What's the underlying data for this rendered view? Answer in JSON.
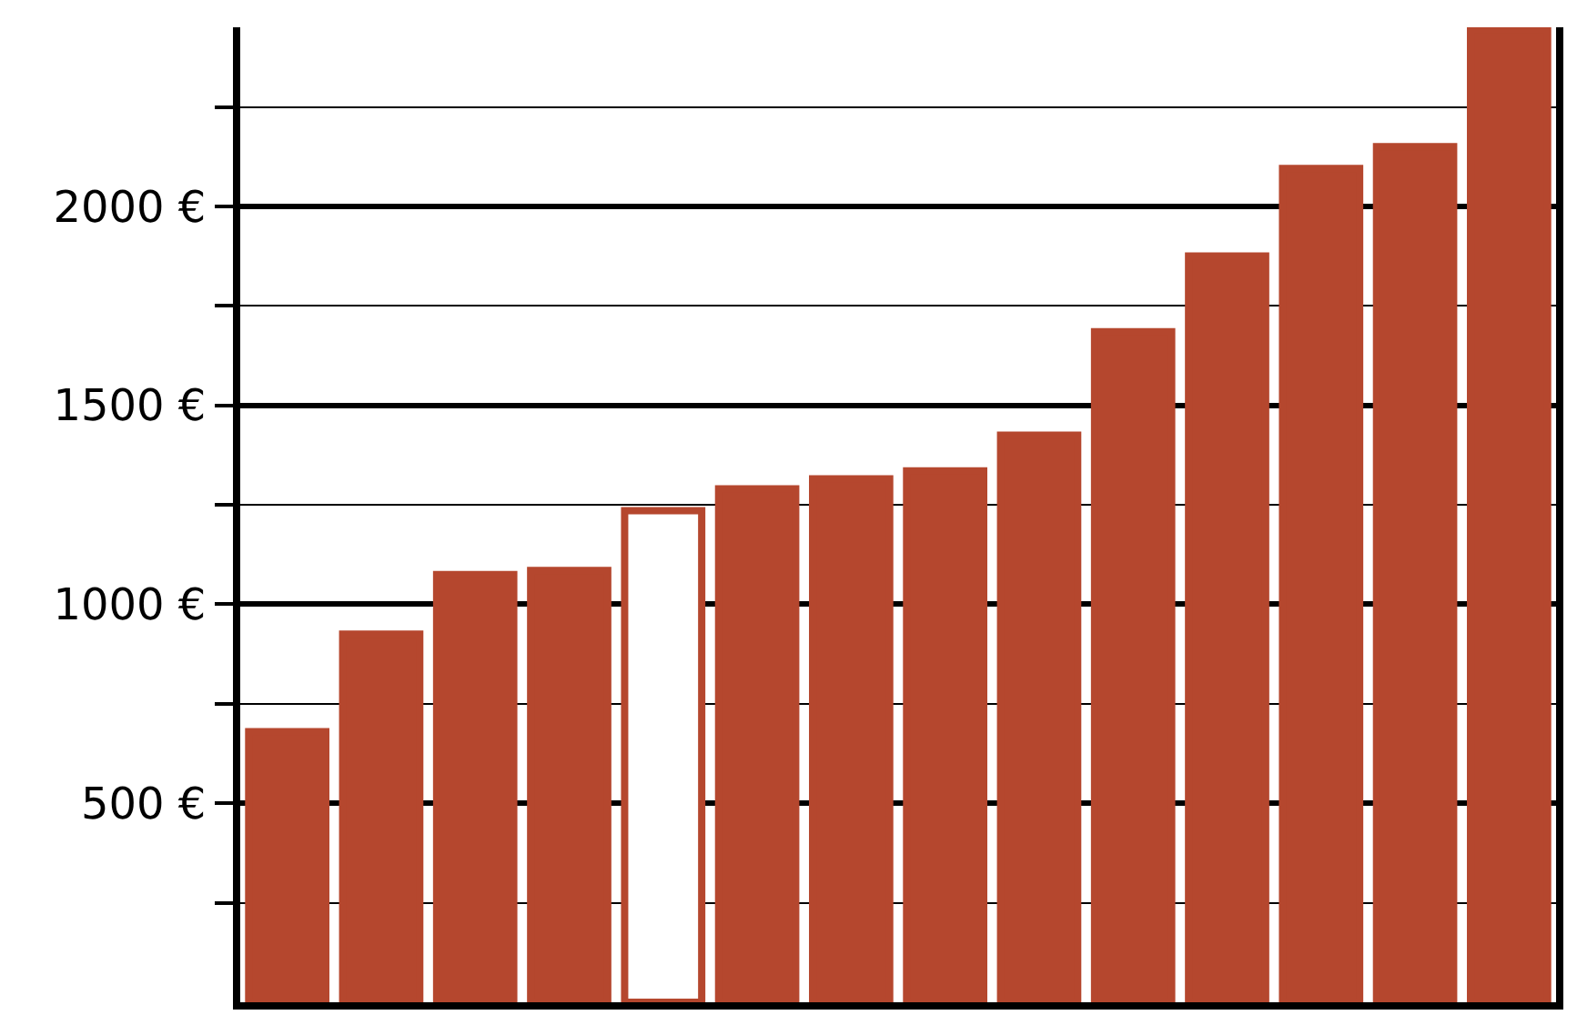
{
  "chart_data": {
    "type": "bar",
    "categories": [
      null,
      null,
      null,
      null,
      null,
      null,
      null,
      null,
      null,
      null,
      null,
      null,
      null,
      null
    ],
    "series": [
      {
        "color": "#b5472e",
        "values": [
          680,
          925,
          1075,
          1085,
          1235,
          1290,
          1315,
          1335,
          1425,
          1685,
          1875,
          2095,
          2150,
          2445
        ],
        "colors": [
          "#b5472e",
          "#b5472e",
          "#b5472e",
          "#b5472e",
          "#ffffff",
          "#b5472e",
          "#b5472e",
          "#b5472e",
          "#b5472e",
          "#b5472e",
          "#b5472e",
          "#b5472e",
          "#b5472e",
          "#b5472e"
        ]
      }
    ],
    "ylim": [
      0,
      2450
    ],
    "yticks": [
      {
        "value": 250,
        "label": null
      },
      {
        "value": 500,
        "label": "500 €"
      },
      {
        "value": 750,
        "label": null
      },
      {
        "value": 1000,
        "label": "1000 €"
      },
      {
        "value": 1250,
        "label": null
      },
      {
        "value": 1500,
        "label": "1500 €"
      },
      {
        "value": 1750,
        "label": null
      },
      {
        "value": 2000,
        "label": "2000 €"
      },
      {
        "value": 2250,
        "label": null
      }
    ],
    "grid": true
  }
}
